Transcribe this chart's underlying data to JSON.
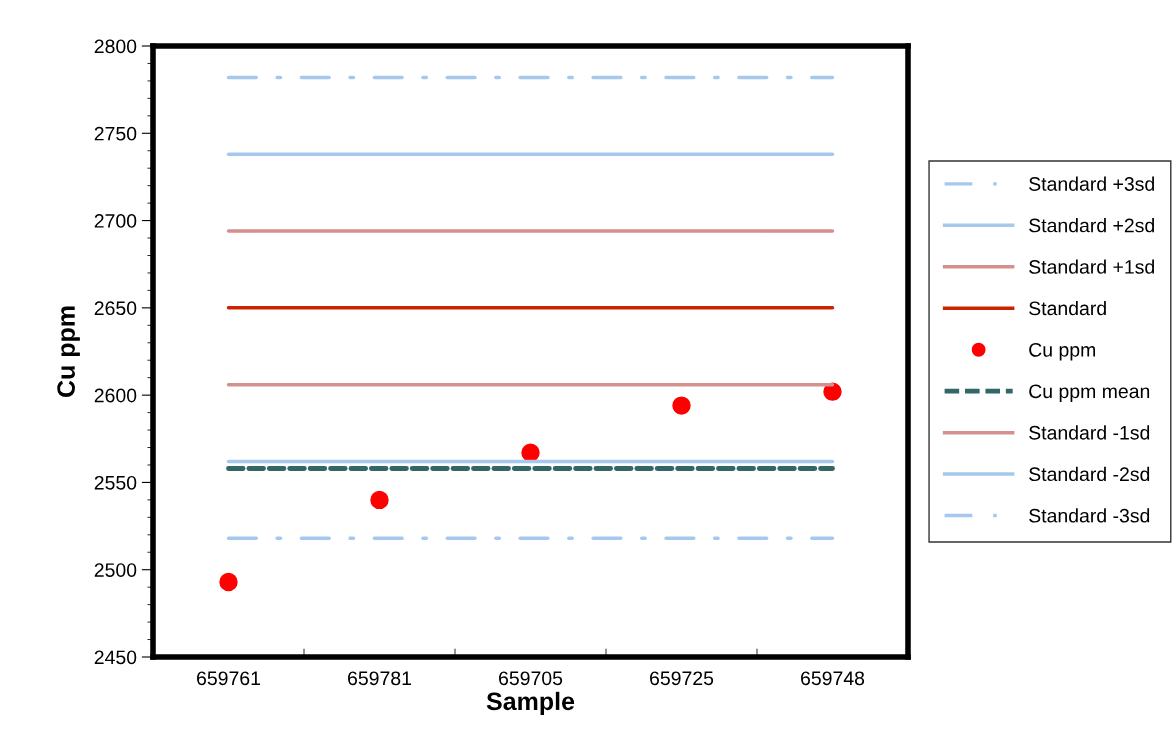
{
  "chart_data": {
    "type": "line",
    "xlabel": "Sample",
    "ylabel": "Cu ppm",
    "categories": [
      "659761",
      "659781",
      "659705",
      "659725",
      "659748"
    ],
    "ylim": [
      2450,
      2800
    ],
    "yticks": [
      2450,
      2500,
      2550,
      2600,
      2650,
      2700,
      2750,
      2800
    ],
    "legend": "right",
    "grid": false,
    "series": [
      {
        "name": "Standard +3sd",
        "line_style": "dashdot",
        "color": "#a6c8ee",
        "values": [
          2782,
          2782,
          2782,
          2782,
          2782
        ]
      },
      {
        "name": "Standard +2sd",
        "line_style": "solid",
        "color": "#a6c8ee",
        "values": [
          2738,
          2738,
          2738,
          2738,
          2738
        ]
      },
      {
        "name": "Standard +1sd",
        "line_style": "solid",
        "color": "#d48f8f",
        "values": [
          2694,
          2694,
          2694,
          2694,
          2694
        ]
      },
      {
        "name": "Standard",
        "line_style": "solid",
        "color": "#cc2200",
        "values": [
          2650,
          2650,
          2650,
          2650,
          2650
        ]
      },
      {
        "name": "Cu ppm",
        "type": "scatter",
        "marker": "circle",
        "color": "#ff0000",
        "values": [
          2493,
          2540,
          2567,
          2594,
          2602
        ]
      },
      {
        "name": "Cu ppm mean",
        "line_style": "dashed",
        "color": "#336666",
        "values": [
          2558,
          2558,
          2558,
          2558,
          2558
        ]
      },
      {
        "name": "Standard -1sd",
        "line_style": "solid",
        "color": "#d48f8f",
        "values": [
          2606,
          2606,
          2606,
          2606,
          2606
        ]
      },
      {
        "name": "Standard -2sd",
        "line_style": "solid",
        "color": "#a6c8ee",
        "values": [
          2562,
          2562,
          2562,
          2562,
          2562
        ]
      },
      {
        "name": "Standard -3sd",
        "line_style": "dashdot",
        "color": "#a6c8ee",
        "values": [
          2518,
          2518,
          2518,
          2518,
          2518
        ]
      }
    ]
  }
}
